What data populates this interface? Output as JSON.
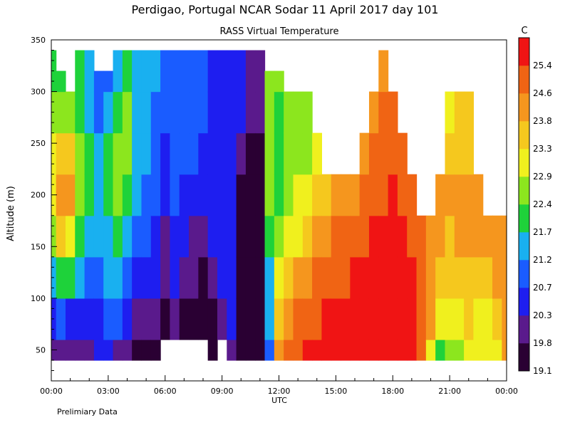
{
  "title": "Perdigao, Portugal   NCAR Sodar   11 April 2017   day 101",
  "subtitle": "RASS Virtual Temperature",
  "footnote": "Prelimiary Data",
  "chart_data": {
    "type": "heatmap",
    "ylabel": "Altitude (m)",
    "xlabel": "UTC",
    "x_ticks": [
      "00:00",
      "03:00",
      "06:00",
      "09:00",
      "12:00",
      "15:00",
      "18:00",
      "21:00",
      "00:00"
    ],
    "x_range_hours": [
      0,
      24
    ],
    "y_ticks": [
      "50",
      "100",
      "150",
      "200",
      "250",
      "300",
      "350"
    ],
    "y_range_m": [
      20,
      350
    ],
    "colorbar": {
      "unit": "C",
      "labels": [
        "19.1",
        "19.8",
        "20.3",
        "20.7",
        "21.2",
        "21.7",
        "22.4",
        "22.9",
        "23.3",
        "23.8",
        "24.6",
        "25.4"
      ],
      "colors": [
        "#2a0033",
        "#5a1a8c",
        "#1e1ef0",
        "#1a5cff",
        "#19b0f0",
        "#1ed23a",
        "#8ce61e",
        "#f0f01e",
        "#f5c81e",
        "#f5961e",
        "#f06414",
        "#f01414"
      ]
    },
    "columns": [
      {
        "t": 0.0,
        "top": 340,
        "v": [
          19.8,
          20.3,
          21.2,
          22.4,
          22.9,
          22.9,
          22.4,
          21.7
        ]
      },
      {
        "t": 0.5,
        "top": 320,
        "v": [
          19.8,
          20.7,
          21.7,
          23.3,
          23.8,
          23.3,
          22.4,
          21.7
        ]
      },
      {
        "t": 1.0,
        "top": 300,
        "v": [
          19.8,
          20.3,
          21.7,
          22.9,
          23.8,
          23.3,
          22.4,
          21.7
        ]
      },
      {
        "t": 1.5,
        "top": 350,
        "v": [
          19.8,
          20.3,
          21.2,
          21.7,
          22.4,
          22.4,
          21.7,
          21.7
        ]
      },
      {
        "t": 2.0,
        "top": 350,
        "v": [
          19.8,
          20.3,
          20.7,
          21.2,
          21.7,
          21.7,
          21.2,
          21.2
        ]
      },
      {
        "t": 2.5,
        "top": 320,
        "v": [
          20.3,
          20.3,
          20.7,
          21.2,
          21.2,
          21.2,
          20.7,
          20.7
        ]
      },
      {
        "t": 3.0,
        "top": 320,
        "v": [
          20.3,
          20.7,
          21.2,
          21.2,
          21.7,
          21.7,
          21.2,
          20.7
        ]
      },
      {
        "t": 3.5,
        "top": 340,
        "v": [
          19.8,
          20.7,
          21.2,
          21.7,
          22.4,
          22.4,
          21.7,
          21.2
        ]
      },
      {
        "t": 4.0,
        "top": 340,
        "v": [
          19.8,
          20.3,
          20.7,
          21.2,
          21.7,
          22.4,
          22.4,
          21.7
        ]
      },
      {
        "t": 4.5,
        "top": 350,
        "v": [
          19.1,
          19.8,
          20.3,
          20.7,
          21.2,
          21.2,
          21.2,
          21.2
        ]
      },
      {
        "t": 5.0,
        "top": 350,
        "v": [
          19.1,
          19.8,
          20.3,
          20.7,
          20.7,
          21.2,
          21.2,
          21.2
        ]
      },
      {
        "t": 5.5,
        "top": 350,
        "v": [
          19.1,
          19.8,
          20.3,
          20.3,
          20.7,
          20.7,
          20.7,
          21.2
        ]
      },
      {
        "t": 6.0,
        "top": 350,
        "v": [
          null,
          19.1,
          19.8,
          19.8,
          20.3,
          20.3,
          20.7,
          20.7
        ]
      },
      {
        "t": 6.5,
        "top": 350,
        "v": [
          null,
          19.8,
          20.3,
          20.3,
          20.7,
          20.7,
          20.7,
          20.7
        ]
      },
      {
        "t": 7.0,
        "top": 350,
        "v": [
          null,
          19.1,
          19.8,
          20.3,
          20.3,
          20.7,
          20.7,
          20.7
        ]
      },
      {
        "t": 7.5,
        "top": 350,
        "v": [
          null,
          19.1,
          19.8,
          19.8,
          20.3,
          20.7,
          20.7,
          20.7
        ]
      },
      {
        "t": 8.0,
        "top": 350,
        "v": [
          null,
          19.1,
          19.1,
          19.8,
          20.3,
          20.3,
          20.7,
          20.7
        ]
      },
      {
        "t": 8.5,
        "top": 350,
        "v": [
          19.1,
          19.1,
          19.8,
          20.3,
          20.3,
          20.3,
          20.3,
          20.3
        ]
      },
      {
        "t": 9.0,
        "top": 350,
        "v": [
          null,
          19.8,
          20.3,
          20.3,
          20.3,
          20.3,
          20.3,
          20.3
        ]
      },
      {
        "t": 9.5,
        "top": 350,
        "v": [
          19.8,
          20.3,
          20.3,
          20.3,
          20.3,
          20.3,
          20.3,
          20.3
        ]
      },
      {
        "t": 10.0,
        "top": 350,
        "v": [
          19.1,
          19.1,
          19.1,
          19.1,
          19.1,
          19.8,
          20.3,
          20.3
        ]
      },
      {
        "t": 10.5,
        "top": 350,
        "v": [
          19.1,
          19.1,
          19.1,
          19.1,
          19.1,
          19.1,
          19.8,
          19.8
        ]
      },
      {
        "t": 11.0,
        "top": 350,
        "v": [
          19.1,
          19.1,
          19.1,
          19.1,
          19.1,
          19.1,
          19.8,
          19.8
        ]
      },
      {
        "t": 11.5,
        "top": 320,
        "v": [
          20.7,
          21.2,
          21.2,
          21.7,
          22.4,
          22.4,
          22.4,
          22.4
        ]
      },
      {
        "t": 12.0,
        "top": 320,
        "v": [
          23.8,
          23.3,
          22.9,
          22.4,
          21.7,
          21.7,
          21.7,
          22.4
        ]
      },
      {
        "t": 12.5,
        "top": 300,
        "v": [
          24.6,
          23.8,
          23.3,
          22.9,
          22.4,
          22.4,
          22.4,
          null
        ]
      },
      {
        "t": 13.0,
        "top": 300,
        "v": [
          24.6,
          24.6,
          23.8,
          22.9,
          22.9,
          22.4,
          22.4,
          null
        ]
      },
      {
        "t": 13.5,
        "top": 320,
        "v": [
          25.4,
          24.6,
          23.8,
          23.3,
          22.9,
          22.4,
          22.4,
          null
        ]
      },
      {
        "t": 14.0,
        "top": 280,
        "v": [
          25.4,
          24.6,
          24.6,
          23.8,
          23.3,
          22.9,
          null,
          null
        ]
      },
      {
        "t": 14.5,
        "top": 280,
        "v": [
          25.4,
          25.4,
          24.6,
          23.8,
          23.3,
          null,
          null,
          null
        ]
      },
      {
        "t": 15.0,
        "top": 260,
        "v": [
          25.4,
          25.4,
          24.6,
          24.6,
          23.8,
          null,
          null,
          null
        ]
      },
      {
        "t": 15.5,
        "top": 260,
        "v": [
          25.4,
          25.4,
          24.6,
          24.6,
          23.8,
          null,
          null,
          null
        ]
      },
      {
        "t": 16.0,
        "top": 260,
        "v": [
          25.4,
          25.4,
          25.4,
          24.6,
          23.8,
          null,
          null,
          null
        ]
      },
      {
        "t": 16.5,
        "top": 300,
        "v": [
          25.4,
          25.4,
          25.4,
          24.6,
          24.6,
          23.8,
          null,
          null
        ]
      },
      {
        "t": 17.0,
        "top": 340,
        "v": [
          25.4,
          25.4,
          25.4,
          25.4,
          24.6,
          24.6,
          23.8,
          null
        ]
      },
      {
        "t": 17.5,
        "top": 350,
        "v": [
          25.4,
          25.4,
          25.4,
          25.4,
          24.6,
          24.6,
          24.6,
          23.8
        ]
      },
      {
        "t": 18.0,
        "top": 320,
        "v": [
          25.4,
          25.4,
          25.4,
          25.4,
          25.4,
          24.6,
          24.6,
          null
        ]
      },
      {
        "t": 18.5,
        "top": 280,
        "v": [
          25.4,
          25.4,
          25.4,
          25.4,
          24.6,
          24.6,
          null,
          null
        ]
      },
      {
        "t": 19.0,
        "top": 240,
        "v": [
          25.4,
          25.4,
          25.4,
          24.6,
          24.6,
          null,
          null,
          null
        ]
      },
      {
        "t": 19.5,
        "top": 240,
        "v": [
          24.6,
          24.6,
          24.6,
          24.6,
          null,
          null,
          null,
          null
        ]
      },
      {
        "t": 20.0,
        "top": 220,
        "v": [
          22.9,
          23.8,
          23.8,
          23.8,
          null,
          null,
          null,
          null
        ]
      },
      {
        "t": 20.5,
        "top": 260,
        "v": [
          21.7,
          22.9,
          23.3,
          23.8,
          23.8,
          null,
          null,
          null
        ]
      },
      {
        "t": 21.0,
        "top": 340,
        "v": [
          22.4,
          22.9,
          23.3,
          23.3,
          23.8,
          23.3,
          22.9,
          null
        ]
      },
      {
        "t": 21.5,
        "top": 320,
        "v": [
          22.4,
          22.9,
          23.3,
          23.8,
          23.8,
          23.3,
          23.3,
          null
        ]
      },
      {
        "t": 22.0,
        "top": 300,
        "v": [
          22.9,
          23.3,
          23.3,
          23.8,
          23.8,
          23.3,
          23.3,
          null
        ]
      },
      {
        "t": 22.5,
        "top": 260,
        "v": [
          22.9,
          22.9,
          23.3,
          23.8,
          23.8,
          null,
          null,
          null
        ]
      },
      {
        "t": 23.0,
        "top": 200,
        "v": [
          22.9,
          22.9,
          23.3,
          23.8,
          null,
          null,
          null,
          null
        ]
      },
      {
        "t": 23.5,
        "top": 220,
        "v": [
          22.9,
          23.3,
          23.8,
          23.8,
          null,
          null,
          null,
          null
        ]
      },
      {
        "t": 24.0,
        "top": 220,
        "v": [
          23.8,
          23.8,
          23.8,
          23.8,
          null,
          null,
          null,
          null
        ]
      }
    ],
    "row_altitudes_m": [
      40,
      80,
      120,
      160,
      200,
      240,
      280,
      320
    ]
  }
}
